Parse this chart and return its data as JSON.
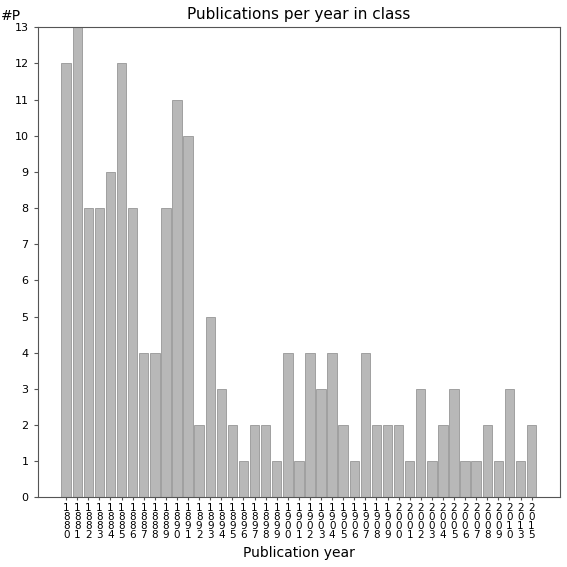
{
  "title": "Publications per year in class",
  "xlabel": "Publication year",
  "ylabel": "#P",
  "bar_color": "#b8b8b8",
  "bar_edgecolor": "#888888",
  "background_color": "#ffffff",
  "ylim": [
    0,
    13
  ],
  "yticks": [
    0,
    1,
    2,
    3,
    4,
    5,
    6,
    7,
    8,
    9,
    10,
    11,
    12,
    13
  ],
  "years": [
    1880,
    1881,
    1882,
    1883,
    1884,
    1885,
    1886,
    1887,
    1888,
    1889,
    1890,
    1891,
    1892,
    1893,
    1894,
    1895,
    1896,
    1897,
    1898,
    1899,
    1900,
    1901,
    1902,
    1903,
    1904,
    1905,
    1906,
    1907,
    1908,
    1909,
    2000,
    2001,
    2002,
    2003,
    2004,
    2005,
    2006,
    2007,
    2008,
    2009,
    2010,
    2013,
    2015
  ],
  "values": [
    12,
    13,
    8,
    8,
    9,
    12,
    8,
    4,
    4,
    8,
    11,
    10,
    2,
    5,
    3,
    2,
    1,
    2,
    2,
    1,
    4,
    1,
    4,
    3,
    4,
    2,
    1,
    4,
    2,
    2,
    2,
    1,
    3,
    1,
    2,
    3,
    1,
    1,
    2,
    1,
    3,
    1,
    2
  ],
  "title_fontsize": 11,
  "axis_label_fontsize": 10,
  "tick_fontsize": 8,
  "xtick_fontsize": 7.5
}
